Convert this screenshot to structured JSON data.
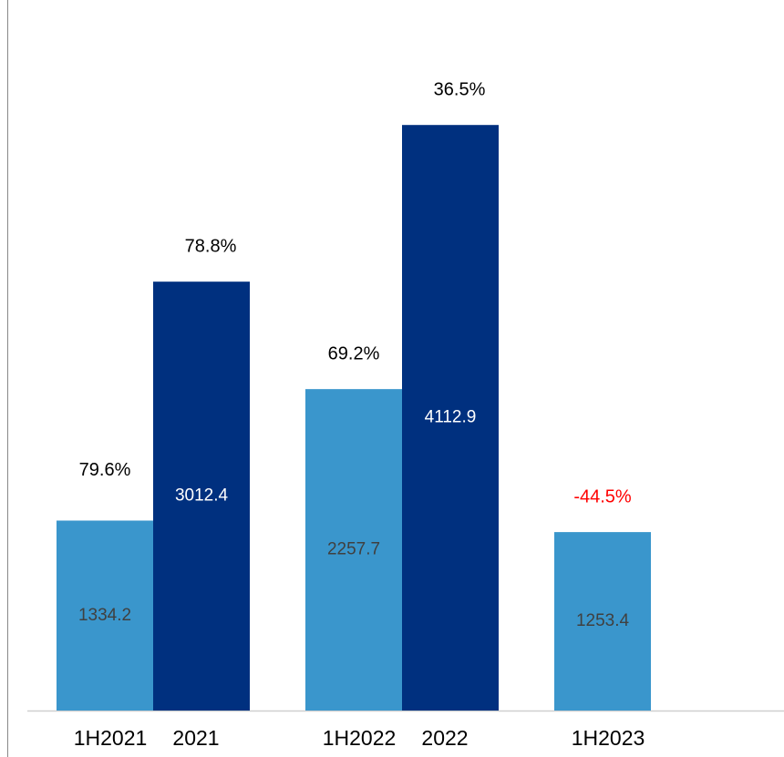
{
  "chart_data": {
    "type": "bar",
    "categories": [
      "1H2021",
      "2021",
      "1H2022",
      "2022",
      "1H2023"
    ],
    "values": [
      1334.2,
      3012.4,
      2257.7,
      4112.9,
      1253.4
    ],
    "colors": [
      "#3a96cc",
      "#00307f",
      "#3a96cc",
      "#00307f",
      "#3a96cc"
    ],
    "value_label_colors": [
      "#404040",
      "#ffffff",
      "#404040",
      "#ffffff",
      "#404040"
    ],
    "growth": [
      79.6,
      78.8,
      69.2,
      36.5,
      -44.5
    ],
    "growth_labels": [
      "79.6%",
      "78.8%",
      "69.2%",
      "36.5%",
      "-44.5%"
    ],
    "growth_color": "#000000",
    "negative_color": "#ff0000",
    "ylim": [
      0,
      4500
    ]
  }
}
